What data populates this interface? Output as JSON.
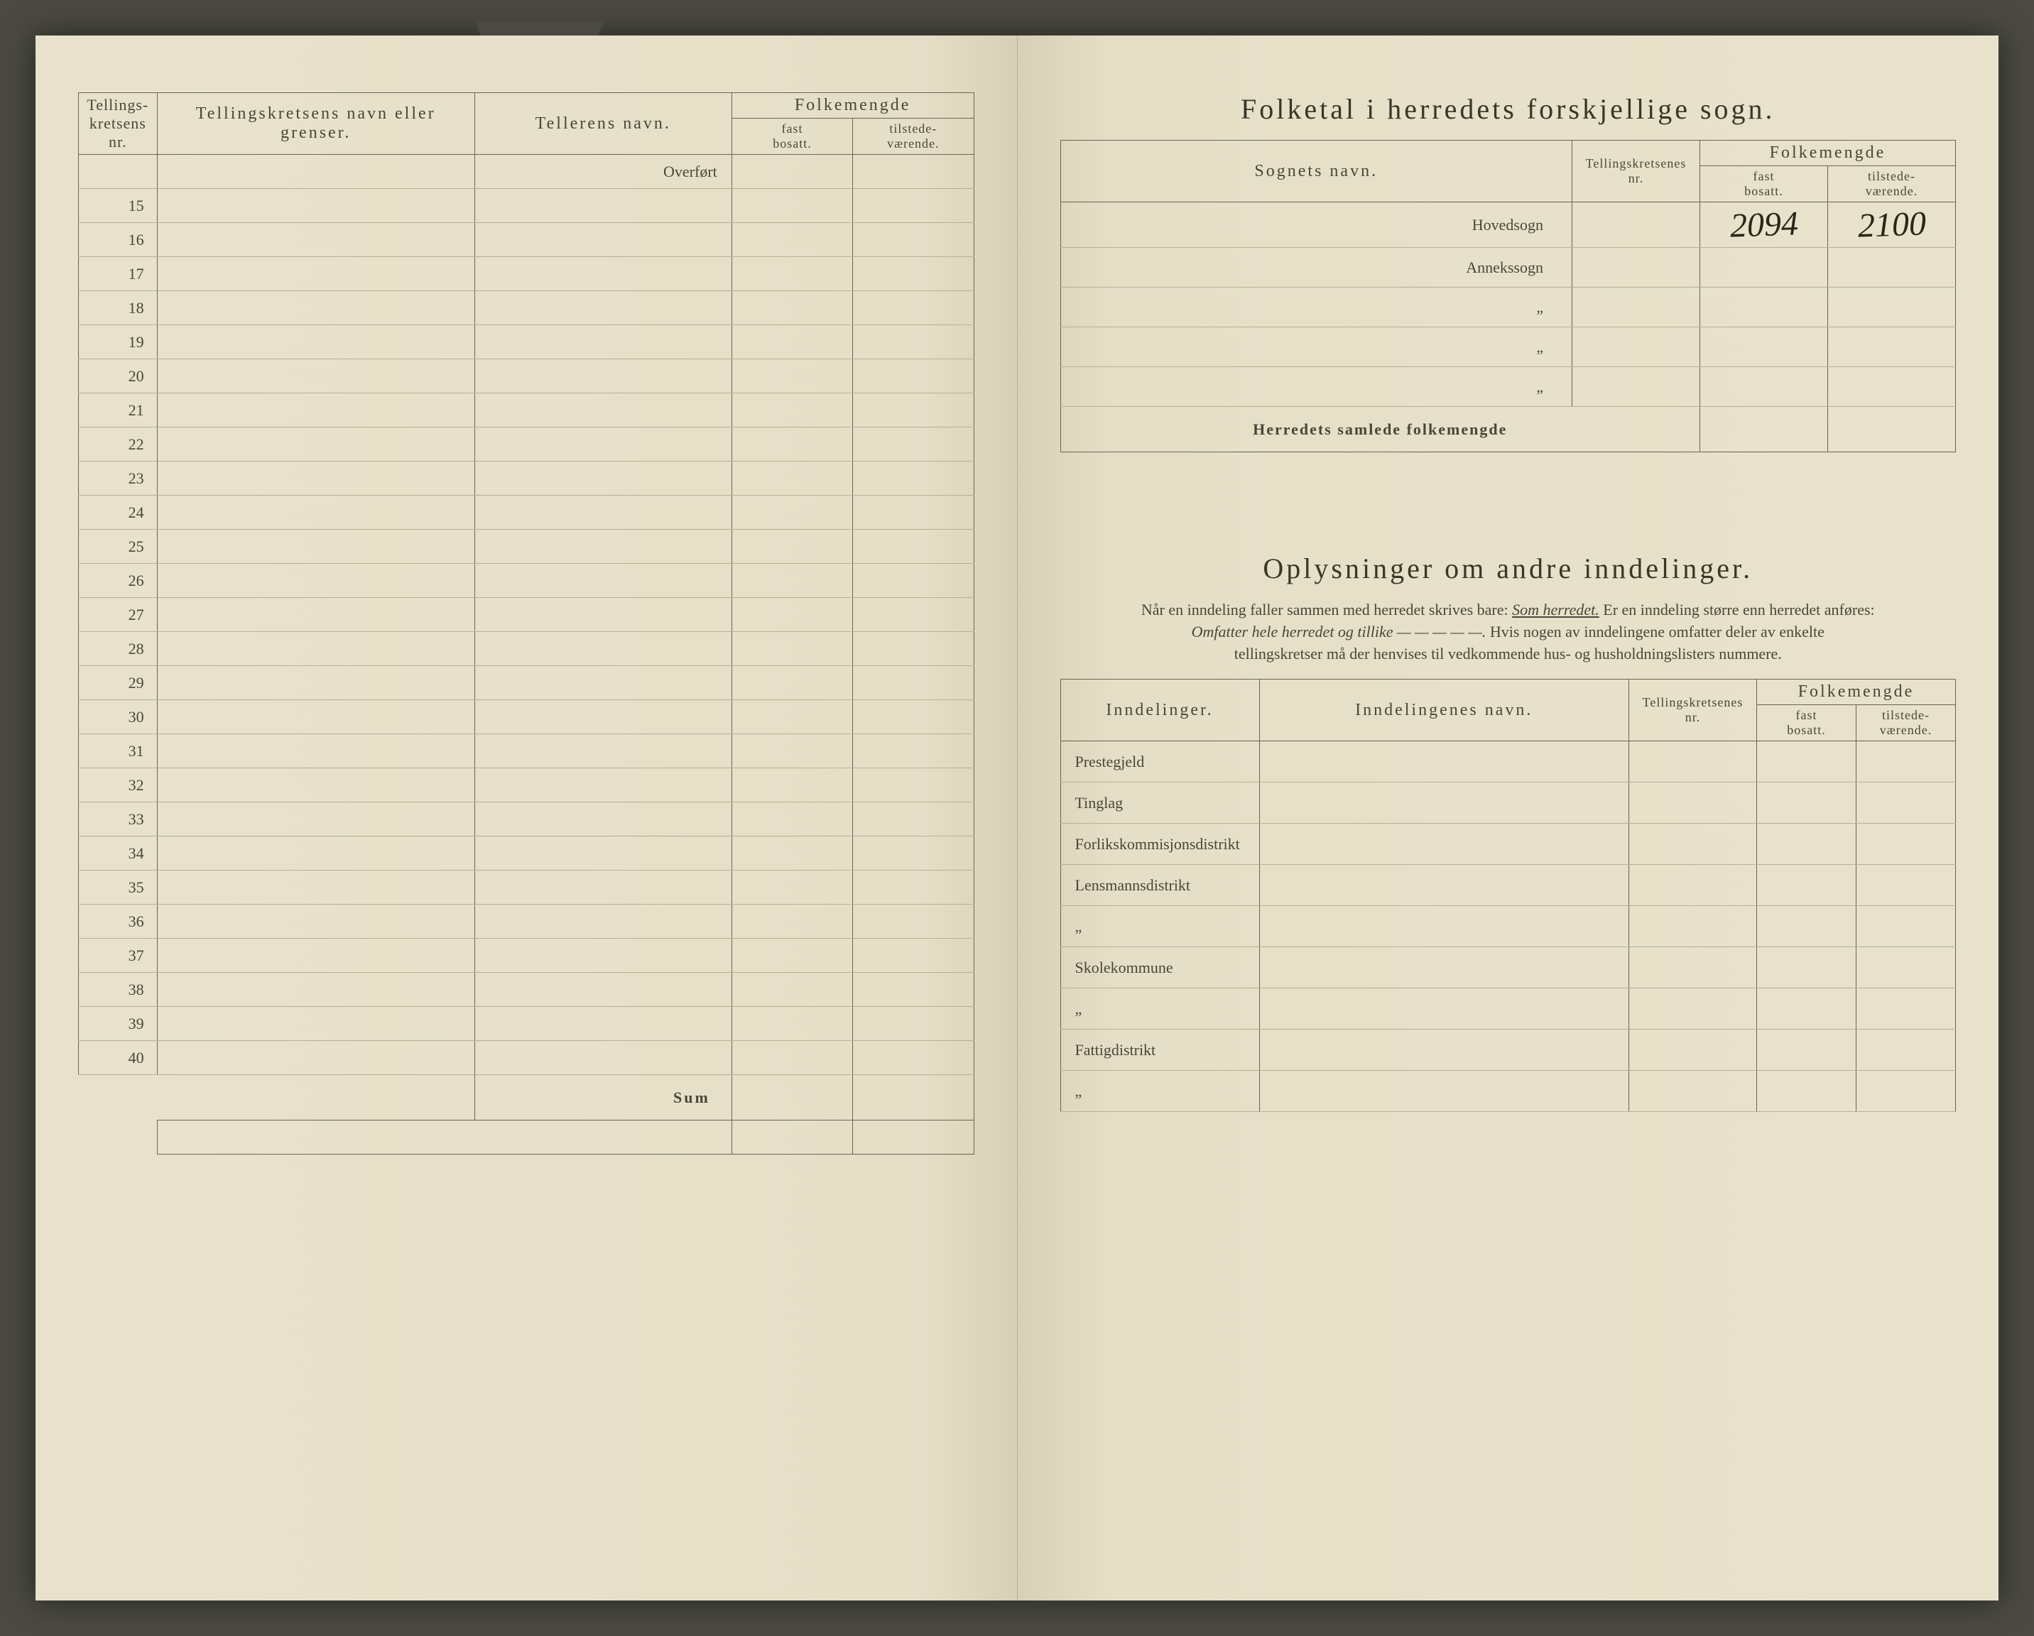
{
  "left": {
    "headers": {
      "col1a": "Tellings-",
      "col1b": "kretsens",
      "col1c": "nr.",
      "col2": "Tellingskretsens navn eller grenser.",
      "col3": "Tellerens navn.",
      "col4": "Folkemengde",
      "col4a": "fast",
      "col4a2": "bosatt.",
      "col4b": "tilstede-",
      "col4b2": "værende."
    },
    "overfort": "Overført",
    "rows": [
      15,
      16,
      17,
      18,
      19,
      20,
      21,
      22,
      23,
      24,
      25,
      26,
      27,
      28,
      29,
      30,
      31,
      32,
      33,
      34,
      35,
      36,
      37,
      38,
      39,
      40
    ],
    "sum": "Sum"
  },
  "right": {
    "title1": "Folketal i herredets forskjellige sogn.",
    "t1headers": {
      "col1": "Sognets navn.",
      "col2a": "Tellingskretsenes",
      "col2b": "nr.",
      "col3": "Folkemengde",
      "col3a": "fast",
      "col3a2": "bosatt.",
      "col3b": "tilstede-",
      "col3b2": "værende."
    },
    "t1rows": {
      "r1": "Hovedsogn",
      "r2": "Annekssogn",
      "r3": "„",
      "r4": "„",
      "r5": "„"
    },
    "t1values": {
      "fast": "2094",
      "tilstede": "2100"
    },
    "t1total": "Herredets samlede folkemengde",
    "title2": "Oplysninger om andre inndelinger.",
    "instr1": "Når en inndeling faller sammen med herredet skrives bare:",
    "instr1u": "Som herredet.",
    "instr1b": "Er en inndeling større enn herredet anføres:",
    "instr2i": "Omfatter hele herredet og tillike — — — — —.",
    "instr2b": "Hvis nogen av inndelingene omfatter deler av enkelte",
    "instr3": "tellingskretser må der henvises til vedkommende hus- og husholdningslisters nummere.",
    "t2headers": {
      "col1": "Inndelinger.",
      "col2": "Inndelingenes navn.",
      "col3a": "Tellingskretsenes",
      "col3b": "nr.",
      "col4": "Folkemengde",
      "col4a": "fast",
      "col4a2": "bosatt.",
      "col4b": "tilstede-",
      "col4b2": "værende."
    },
    "t2rows": {
      "r1": "Prestegjeld",
      "r2": "Tinglag",
      "r3": "Forlikskommisjonsdistrikt",
      "r4": "Lensmannsdistrikt",
      "r5": "„",
      "r6": "Skolekommune",
      "r7": "„",
      "r8": "Fattigdistrikt",
      "r9": "„"
    }
  }
}
